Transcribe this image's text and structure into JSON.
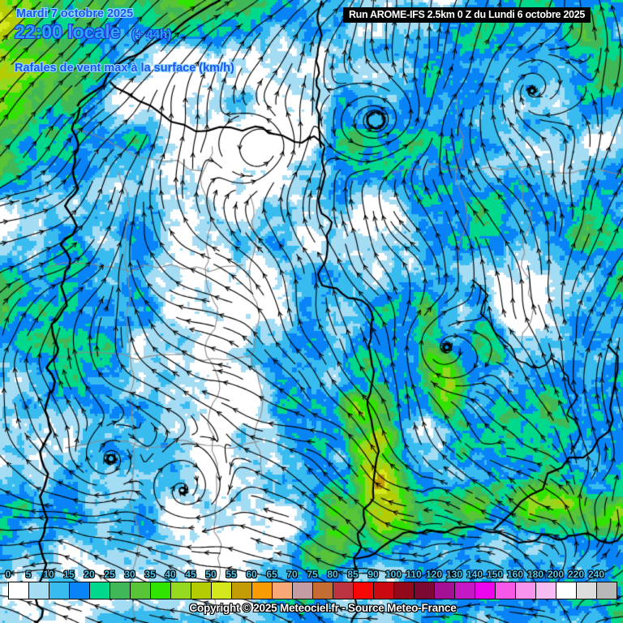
{
  "header": {
    "date_line": "Mardi 7 octobre 2025",
    "time_line": "22:00 locale",
    "offset_label": "(+ 44h)",
    "subtitle": "Rafales de vent max à la surface (km/h)",
    "run_info": "Run AROME-IFS 2.5km 0 Z du Lundi 6 octobre 2025"
  },
  "footer": {
    "copyright": "Copyright © 2025 Meteociel.fr - Source Meteo-France"
  },
  "legend": {
    "unit": "km/h",
    "stops": [
      {
        "label": "0",
        "color": "#ffffff"
      },
      {
        "label": "5",
        "color": "#a4dcf4"
      },
      {
        "label": "10",
        "color": "#38bcf0"
      },
      {
        "label": "15",
        "color": "#0884f8"
      },
      {
        "label": "20",
        "color": "#00d88c"
      },
      {
        "label": "25",
        "color": "#40b858"
      },
      {
        "label": "30",
        "color": "#58c438"
      },
      {
        "label": "35",
        "color": "#30e400"
      },
      {
        "label": "40",
        "color": "#94d820"
      },
      {
        "label": "45",
        "color": "#b4cc04"
      },
      {
        "label": "50",
        "color": "#d4e81c"
      },
      {
        "label": "55",
        "color": "#c49c04"
      },
      {
        "label": "60",
        "color": "#f89c04"
      },
      {
        "label": "65",
        "color": "#f8a874"
      },
      {
        "label": "70",
        "color": "#c49ca4"
      },
      {
        "label": "75",
        "color": "#c46c34"
      },
      {
        "label": "80",
        "color": "#bc3440"
      },
      {
        "label": "85",
        "color": "#f80804"
      },
      {
        "label": "90",
        "color": "#cc0810"
      },
      {
        "label": "100",
        "color": "#94081c"
      },
      {
        "label": "110",
        "color": "#7c0834"
      },
      {
        "label": "120",
        "color": "#a41094"
      },
      {
        "label": "130",
        "color": "#c418c4"
      },
      {
        "label": "140",
        "color": "#ec04ec"
      },
      {
        "label": "150",
        "color": "#f858e8"
      },
      {
        "label": "160",
        "color": "#f894ec"
      },
      {
        "label": "180",
        "color": "#f8bcf4"
      },
      {
        "label": "200",
        "color": "#ffffff"
      },
      {
        "label": "220",
        "color": "#dcdcdc"
      },
      {
        "label": "240",
        "color": "#b8b8b8"
      }
    ]
  },
  "map": {
    "colors": {
      "streamline": "#000000",
      "border": "#000000",
      "region_border": "#8a8a8a",
      "label_color": "#56c8f0"
    }
  }
}
